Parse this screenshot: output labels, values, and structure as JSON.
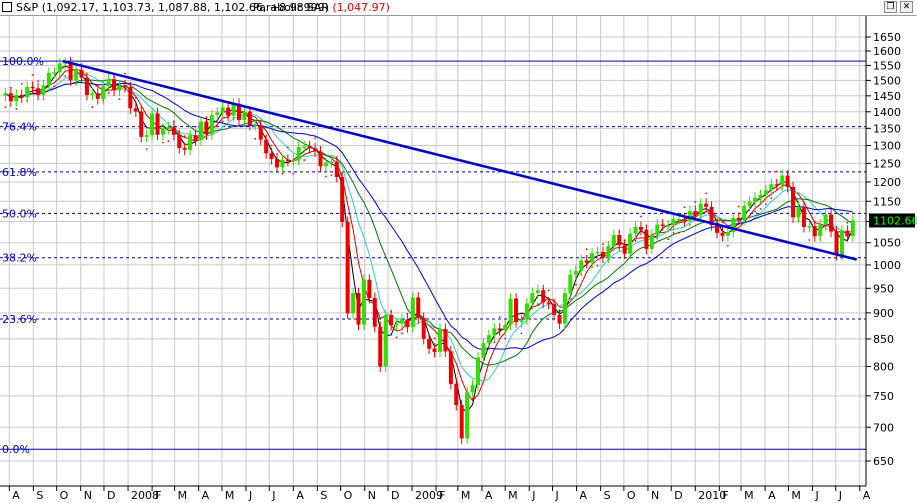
{
  "header": {
    "quote": "S&P (1,092.17, 1,103.73, 1,087.88, 1,102.66, +8.98999)",
    "sar_label": "Parabolic SAR",
    "sar_value": "(1,047.97)",
    "restore_icon": "restore-icon",
    "close_icon": "close-icon"
  },
  "colors": {
    "up_bar": "#33dd00",
    "down_bar": "#ee0000",
    "fib_line": "#0000aa",
    "trendline": "#0000cc",
    "sar_dots": "#ff0000",
    "last_price_box": "#000000",
    "last_price_text": "#00ff00"
  },
  "chart_data": {
    "type": "candlestick",
    "ylim": [
      640,
      1680
    ],
    "scale": "log",
    "y_ticks": [
      650,
      700,
      750,
      800,
      850,
      900,
      950,
      1000,
      1050,
      1100,
      1150,
      1200,
      1250,
      1300,
      1350,
      1400,
      1450,
      1500,
      1550,
      1600,
      1650
    ],
    "x_ticks": [
      "A",
      "S",
      "O",
      "N",
      "D",
      "2008",
      "F",
      "M",
      "A",
      "M",
      "J",
      "J",
      "A",
      "S",
      "O",
      "N",
      "D",
      "2009",
      "F",
      "M",
      "A",
      "M",
      "J",
      "J",
      "A",
      "S",
      "O",
      "N",
      "D",
      "2010",
      "F",
      "M",
      "A",
      "M",
      "J",
      "J",
      "A"
    ],
    "last_price": "1102.66",
    "fibonacci": [
      {
        "label": "100.0%",
        "value": 1565
      },
      {
        "label": "76.4%",
        "value": 1355
      },
      {
        "label": "61.8%",
        "value": 1227
      },
      {
        "label": "50.0%",
        "value": 1120
      },
      {
        "label": "38.2%",
        "value": 1016
      },
      {
        "label": "23.6%",
        "value": 888
      },
      {
        "label": "0.0%",
        "value": 667
      }
    ],
    "trendline": [
      {
        "x": "2007-10",
        "y": 1565
      },
      {
        "x": "2010-07",
        "y": 1012
      }
    ],
    "weekly_close": [
      {
        "x": "2007-07-27",
        "y": 1458
      },
      {
        "x": "2007-08-03",
        "y": 1433
      },
      {
        "x": "2007-08-10",
        "y": 1453
      },
      {
        "x": "2007-08-17",
        "y": 1445
      },
      {
        "x": "2007-08-24",
        "y": 1479
      },
      {
        "x": "2007-08-31",
        "y": 1474
      },
      {
        "x": "2007-09-07",
        "y": 1453
      },
      {
        "x": "2007-09-14",
        "y": 1484
      },
      {
        "x": "2007-09-21",
        "y": 1525
      },
      {
        "x": "2007-09-28",
        "y": 1527
      },
      {
        "x": "2007-10-05",
        "y": 1557
      },
      {
        "x": "2007-10-12",
        "y": 1561
      },
      {
        "x": "2007-10-19",
        "y": 1500
      },
      {
        "x": "2007-10-26",
        "y": 1535
      },
      {
        "x": "2007-11-02",
        "y": 1509
      },
      {
        "x": "2007-11-09",
        "y": 1453
      },
      {
        "x": "2007-11-16",
        "y": 1458
      },
      {
        "x": "2007-11-23",
        "y": 1440
      },
      {
        "x": "2007-11-30",
        "y": 1481
      },
      {
        "x": "2007-12-07",
        "y": 1504
      },
      {
        "x": "2007-12-14",
        "y": 1467
      },
      {
        "x": "2007-12-21",
        "y": 1484
      },
      {
        "x": "2007-12-28",
        "y": 1478
      },
      {
        "x": "2008-01-04",
        "y": 1411
      },
      {
        "x": "2008-01-11",
        "y": 1401
      },
      {
        "x": "2008-01-18",
        "y": 1325
      },
      {
        "x": "2008-01-25",
        "y": 1330
      },
      {
        "x": "2008-02-01",
        "y": 1395
      },
      {
        "x": "2008-02-08",
        "y": 1331
      },
      {
        "x": "2008-02-15",
        "y": 1349
      },
      {
        "x": "2008-02-22",
        "y": 1353
      },
      {
        "x": "2008-02-29",
        "y": 1331
      },
      {
        "x": "2008-03-07",
        "y": 1293
      },
      {
        "x": "2008-03-14",
        "y": 1288
      },
      {
        "x": "2008-03-21",
        "y": 1330
      },
      {
        "x": "2008-03-28",
        "y": 1315
      },
      {
        "x": "2008-04-04",
        "y": 1370
      },
      {
        "x": "2008-04-11",
        "y": 1332
      },
      {
        "x": "2008-04-18",
        "y": 1390
      },
      {
        "x": "2008-04-25",
        "y": 1398
      },
      {
        "x": "2008-05-02",
        "y": 1413
      },
      {
        "x": "2008-05-09",
        "y": 1388
      },
      {
        "x": "2008-05-16",
        "y": 1425
      },
      {
        "x": "2008-05-23",
        "y": 1375
      },
      {
        "x": "2008-05-30",
        "y": 1400
      },
      {
        "x": "2008-06-06",
        "y": 1360
      },
      {
        "x": "2008-06-13",
        "y": 1360
      },
      {
        "x": "2008-06-20",
        "y": 1317
      },
      {
        "x": "2008-06-27",
        "y": 1278
      },
      {
        "x": "2008-07-04",
        "y": 1262
      },
      {
        "x": "2008-07-11",
        "y": 1239
      },
      {
        "x": "2008-07-18",
        "y": 1260
      },
      {
        "x": "2008-07-25",
        "y": 1257
      },
      {
        "x": "2008-08-01",
        "y": 1260
      },
      {
        "x": "2008-08-08",
        "y": 1296
      },
      {
        "x": "2008-08-15",
        "y": 1298
      },
      {
        "x": "2008-08-22",
        "y": 1292
      },
      {
        "x": "2008-08-29",
        "y": 1283
      },
      {
        "x": "2008-09-05",
        "y": 1242
      },
      {
        "x": "2008-09-12",
        "y": 1252
      },
      {
        "x": "2008-09-19",
        "y": 1255
      },
      {
        "x": "2008-09-26",
        "y": 1213
      },
      {
        "x": "2008-10-03",
        "y": 1099
      },
      {
        "x": "2008-10-10",
        "y": 899
      },
      {
        "x": "2008-10-17",
        "y": 940
      },
      {
        "x": "2008-10-24",
        "y": 877
      },
      {
        "x": "2008-10-31",
        "y": 968
      },
      {
        "x": "2008-11-07",
        "y": 930
      },
      {
        "x": "2008-11-14",
        "y": 873
      },
      {
        "x": "2008-11-21",
        "y": 800
      },
      {
        "x": "2008-11-28",
        "y": 896
      },
      {
        "x": "2008-12-05",
        "y": 876
      },
      {
        "x": "2008-12-12",
        "y": 879
      },
      {
        "x": "2008-12-19",
        "y": 887
      },
      {
        "x": "2008-12-26",
        "y": 872
      },
      {
        "x": "2009-01-02",
        "y": 931
      },
      {
        "x": "2009-01-09",
        "y": 890
      },
      {
        "x": "2009-01-16",
        "y": 850
      },
      {
        "x": "2009-01-23",
        "y": 832
      },
      {
        "x": "2009-01-30",
        "y": 826
      },
      {
        "x": "2009-02-06",
        "y": 869
      },
      {
        "x": "2009-02-13",
        "y": 827
      },
      {
        "x": "2009-02-20",
        "y": 770
      },
      {
        "x": "2009-02-27",
        "y": 735
      },
      {
        "x": "2009-03-06",
        "y": 683
      },
      {
        "x": "2009-03-13",
        "y": 756
      },
      {
        "x": "2009-03-20",
        "y": 768
      },
      {
        "x": "2009-03-27",
        "y": 816
      },
      {
        "x": "2009-04-03",
        "y": 842
      },
      {
        "x": "2009-04-10",
        "y": 857
      },
      {
        "x": "2009-04-17",
        "y": 870
      },
      {
        "x": "2009-04-24",
        "y": 866
      },
      {
        "x": "2009-05-01",
        "y": 877
      },
      {
        "x": "2009-05-08",
        "y": 929
      },
      {
        "x": "2009-05-15",
        "y": 882
      },
      {
        "x": "2009-05-22",
        "y": 887
      },
      {
        "x": "2009-05-29",
        "y": 919
      },
      {
        "x": "2009-06-05",
        "y": 940
      },
      {
        "x": "2009-06-12",
        "y": 946
      },
      {
        "x": "2009-06-19",
        "y": 921
      },
      {
        "x": "2009-06-26",
        "y": 918
      },
      {
        "x": "2009-07-03",
        "y": 896
      },
      {
        "x": "2009-07-10",
        "y": 879
      },
      {
        "x": "2009-07-17",
        "y": 940
      },
      {
        "x": "2009-07-24",
        "y": 979
      },
      {
        "x": "2009-07-31",
        "y": 987
      },
      {
        "x": "2009-08-07",
        "y": 1010
      },
      {
        "x": "2009-08-14",
        "y": 1005
      },
      {
        "x": "2009-08-21",
        "y": 1026
      },
      {
        "x": "2009-08-28",
        "y": 1029
      },
      {
        "x": "2009-09-04",
        "y": 1016
      },
      {
        "x": "2009-09-11",
        "y": 1042
      },
      {
        "x": "2009-09-18",
        "y": 1068
      },
      {
        "x": "2009-09-25",
        "y": 1044
      },
      {
        "x": "2009-10-02",
        "y": 1025
      },
      {
        "x": "2009-10-09",
        "y": 1071
      },
      {
        "x": "2009-10-16",
        "y": 1087
      },
      {
        "x": "2009-10-23",
        "y": 1080
      },
      {
        "x": "2009-10-30",
        "y": 1036
      },
      {
        "x": "2009-11-06",
        "y": 1069
      },
      {
        "x": "2009-11-13",
        "y": 1093
      },
      {
        "x": "2009-11-20",
        "y": 1091
      },
      {
        "x": "2009-11-27",
        "y": 1091
      },
      {
        "x": "2009-12-04",
        "y": 1106
      },
      {
        "x": "2009-12-11",
        "y": 1106
      },
      {
        "x": "2009-12-18",
        "y": 1102
      },
      {
        "x": "2009-12-25",
        "y": 1126
      },
      {
        "x": "2010-01-01",
        "y": 1115
      },
      {
        "x": "2010-01-08",
        "y": 1144
      },
      {
        "x": "2010-01-15",
        "y": 1136
      },
      {
        "x": "2010-01-22",
        "y": 1091
      },
      {
        "x": "2010-01-29",
        "y": 1073
      },
      {
        "x": "2010-02-05",
        "y": 1066
      },
      {
        "x": "2010-02-12",
        "y": 1075
      },
      {
        "x": "2010-02-19",
        "y": 1109
      },
      {
        "x": "2010-02-26",
        "y": 1104
      },
      {
        "x": "2010-03-05",
        "y": 1138
      },
      {
        "x": "2010-03-12",
        "y": 1149
      },
      {
        "x": "2010-03-19",
        "y": 1159
      },
      {
        "x": "2010-03-26",
        "y": 1166
      },
      {
        "x": "2010-04-02",
        "y": 1178
      },
      {
        "x": "2010-04-09",
        "y": 1194
      },
      {
        "x": "2010-04-16",
        "y": 1192
      },
      {
        "x": "2010-04-23",
        "y": 1217
      },
      {
        "x": "2010-04-30",
        "y": 1187
      },
      {
        "x": "2010-05-07",
        "y": 1110
      },
      {
        "x": "2010-05-14",
        "y": 1136
      },
      {
        "x": "2010-05-21",
        "y": 1087
      },
      {
        "x": "2010-05-28",
        "y": 1089
      },
      {
        "x": "2010-06-04",
        "y": 1065
      },
      {
        "x": "2010-06-11",
        "y": 1092
      },
      {
        "x": "2010-06-18",
        "y": 1117
      },
      {
        "x": "2010-06-25",
        "y": 1076
      },
      {
        "x": "2010-07-02",
        "y": 1022
      },
      {
        "x": "2010-07-09",
        "y": 1078
      },
      {
        "x": "2010-07-16",
        "y": 1065
      },
      {
        "x": "2010-07-23",
        "y": 1102.66
      }
    ]
  }
}
